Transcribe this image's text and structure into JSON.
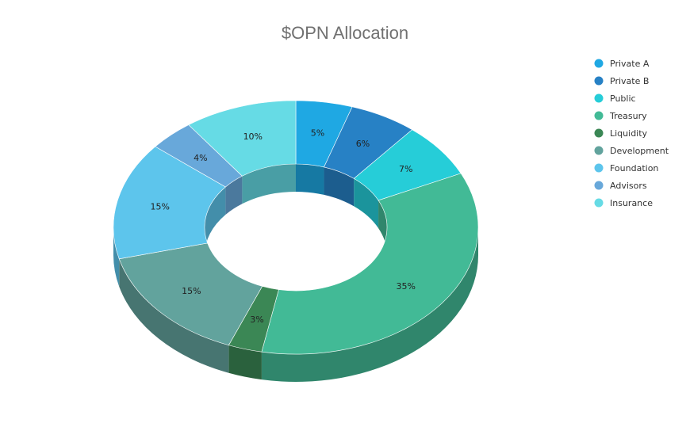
{
  "chart_data": {
    "type": "pie",
    "variant": "3d-donut",
    "title": "$OPN Allocation",
    "legend_position": "right",
    "slices": [
      {
        "label": "Private A",
        "value": 5,
        "color": "#1FA8E3"
      },
      {
        "label": "Private B",
        "value": 6,
        "color": "#2781C5"
      },
      {
        "label": "Public",
        "value": 7,
        "color": "#26CDD8"
      },
      {
        "label": "Treasury",
        "value": 35,
        "color": "#42BA96"
      },
      {
        "label": "Liquidity",
        "value": 3,
        "color": "#3B8755"
      },
      {
        "label": "Development",
        "value": 15,
        "color": "#62A39D"
      },
      {
        "label": "Foundation",
        "value": 15,
        "color": "#5DC5EC"
      },
      {
        "label": "Advisors",
        "value": 4,
        "color": "#68A8DA"
      },
      {
        "label": "Insurance",
        "value": 10,
        "color": "#66DBE5"
      }
    ]
  }
}
